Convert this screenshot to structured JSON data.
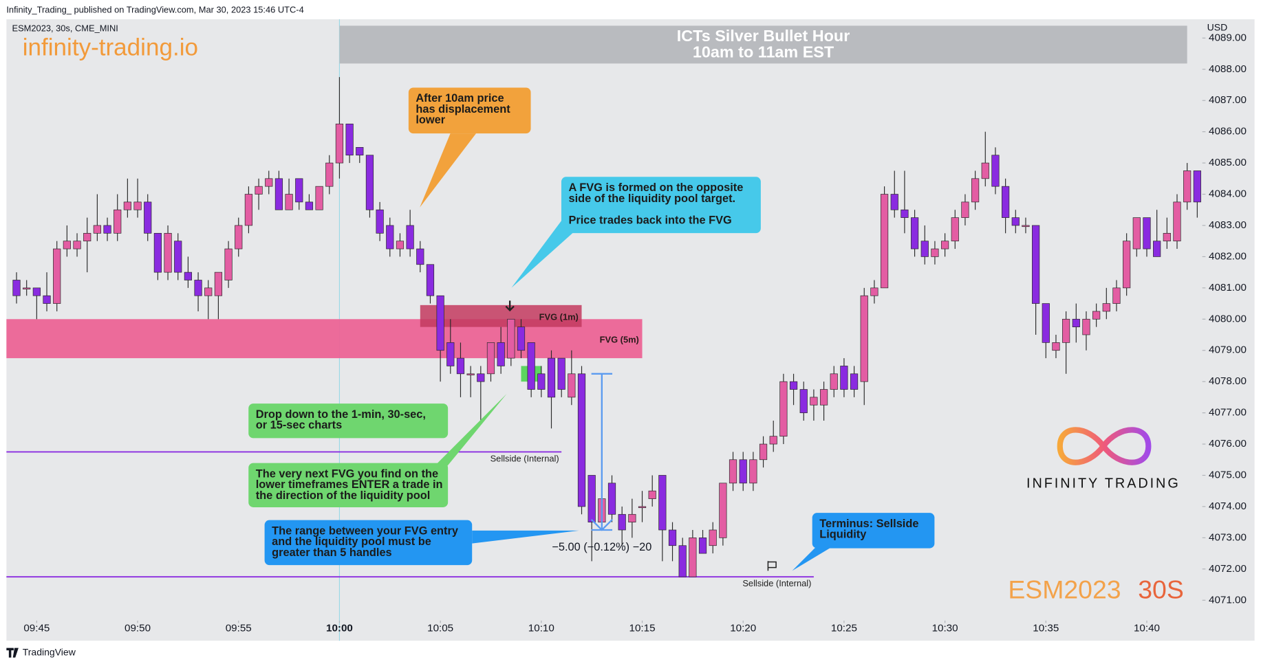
{
  "header": "Infinity_Trading_ published on TradingView.com, Mar 30, 2023 15:46 UTC-4",
  "footer": "TradingView",
  "chart_data": {
    "type": "candlestick",
    "symbol": "ESM2023, 30s, CME_MINI",
    "watermark": "infinity-trading.io",
    "currency": "USD",
    "up_color": "#e35da3",
    "down_color": "#8a2be0",
    "open": [
      4081.25,
      4081,
      4081,
      4080.75,
      4080.5,
      4082.25,
      4082.25,
      4082.5,
      4082.75,
      4083,
      4082.75,
      4083.5,
      4083.5,
      4083.75,
      4082.75,
      4081.5,
      4082.5,
      4081.5,
      4081.25,
      4080.75,
      4080.75,
      4081.25,
      4082.25,
      4083,
      4084,
      4084.25,
      4084.5,
      4083.5,
      4084.5,
      4083.75,
      4083.5,
      4084.25,
      4085,
      4086.25,
      4085.5,
      4085.25,
      4083.5,
      4083,
      4082.25,
      4083,
      4082.25,
      4081.75,
      4080.75,
      4079.25,
      4078.75,
      4078.25,
      4078.25,
      4078.25,
      4079.25,
      4078.75,
      4079.75,
      4079.25,
      4078.25,
      4078.75,
      4078.75,
      4077.5,
      4078.25,
      4075,
      4073.5,
      4074.75,
      4073.75,
      4073.5,
      4074,
      4074.25,
      4075,
      4073.25,
      4072.75,
      4071.75,
      4073,
      4072.75,
      4073,
      4074.75,
      4075.5,
      4074.75,
      4075.5,
      4076,
      4076.25,
      4078,
      4077.75,
      4077.25,
      4077.25,
      4077.75,
      4078.5,
      4078.25,
      4078,
      4080.75,
      4081,
      4084,
      4083.5,
      4083.25,
      4082.5,
      4082,
      4082.25,
      4082.5,
      4083.25,
      4083.75,
      4084.5,
      4085.25,
      4084.25,
      4083.25,
      4083,
      4083,
      4080.5,
      4079,
      4079.25,
      4080,
      4079.5,
      4080,
      4080.25,
      4080.5,
      4081,
      4082.25,
      4083.25,
      4082.5,
      4082.5,
      4082.5,
      4083.75,
      4084.75
    ],
    "high": [
      4081.5,
      4081.25,
      4081,
      4081.5,
      4082.5,
      4083,
      4082.75,
      4083.25,
      4084,
      4083.25,
      4084,
      4084.5,
      4084.5,
      4084,
      4082.75,
      4083,
      4082.75,
      4082,
      4081.5,
      4081.25,
      4081.5,
      4082.5,
      4083.25,
      4084.25,
      4084.5,
      4084.75,
      4084.75,
      4084.5,
      4084.5,
      4084,
      4084.25,
      4085.25,
      4087.75,
      4086.25,
      4085.5,
      4085.25,
      4083.75,
      4083.25,
      4082.75,
      4083.5,
      4082.5,
      4081.75,
      4080.75,
      4080,
      4079.25,
      4078.5,
      4078.5,
      4079.25,
      4079.75,
      4080,
      4080,
      4079.25,
      4078.5,
      4079,
      4078.75,
      4079,
      4078.5,
      4075,
      4074.5,
      4075,
      4074,
      4074.25,
      4074.5,
      4075,
      4075,
      4073.5,
      4073,
      4073.25,
      4073.25,
      4073.5,
      4074.75,
      4075.75,
      4075.75,
      4075.75,
      4076.25,
      4076.75,
      4078.25,
      4078.25,
      4078,
      4077.75,
      4078,
      4078.5,
      4078.75,
      4078.5,
      4081,
      4081.25,
      4084.25,
      4084.75,
      4084.75,
      4083.5,
      4083,
      4082.5,
      4082.75,
      4083.5,
      4084,
      4084.75,
      4086,
      4085.5,
      4084.5,
      4083.5,
      4083.25,
      4083,
      4080.5,
      4079.5,
      4080.25,
      4080.5,
      4080.25,
      4080.5,
      4081,
      4081.25,
      4082.75,
      4083.25,
      4083.25,
      4083.5,
      4083.25,
      4084,
      4085,
      4084.75
    ],
    "low": [
      4080.5,
      4080.75,
      4080,
      4080.25,
      4080.25,
      4082,
      4082,
      4081.5,
      4082.5,
      4082.5,
      4082.5,
      4083.25,
      4083.25,
      4082.5,
      4081.25,
      4081.25,
      4081.25,
      4081,
      4080.25,
      4080,
      4080,
      4081,
      4082,
      4082.75,
      4083.5,
      4084,
      4083.5,
      4083.5,
      4083.5,
      4083.5,
      4083.5,
      4084,
      4084.5,
      4085,
      4085,
      4083.25,
      4082.5,
      4082,
      4082,
      4082,
      4081.5,
      4080.5,
      4078,
      4078.25,
      4077.5,
      4077.5,
      4076.75,
      4078,
      4078.25,
      4078.5,
      4078.75,
      4077.5,
      4077.5,
      4076.5,
      4077.5,
      4077.25,
      4073.75,
      4072.25,
      4073.25,
      4073.5,
      4072.75,
      4073,
      4073.5,
      4074,
      4072.25,
      4072.25,
      4071.75,
      4071.75,
      4072.5,
      4072.5,
      4072.75,
      4074.5,
      4074.5,
      4074.5,
      4075.25,
      4075.75,
      4076,
      4077.25,
      4076.75,
      4076.75,
      4076.75,
      4077.5,
      4077.5,
      4077.5,
      4077.25,
      4080.5,
      4081,
      4083.25,
      4082.75,
      4082,
      4081.75,
      4081.75,
      4082,
      4082.25,
      4083,
      4083.5,
      4084.25,
      4084,
      4082.75,
      4082.75,
      4082.75,
      4079.5,
      4078.75,
      4078.75,
      4078.25,
      4079.25,
      4079,
      4079.75,
      4080,
      4080.25,
      4080.75,
      4082,
      4082,
      4082,
      4082.25,
      4082.25,
      4083.5,
      4083.25
    ],
    "close": [
      4080.75,
      4081,
      4080.75,
      4080.5,
      4082.25,
      4082.5,
      4082.5,
      4082.75,
      4083,
      4082.75,
      4083.5,
      4083.75,
      4083.75,
      4082.75,
      4081.5,
      4082.75,
      4081.5,
      4081.25,
      4080.75,
      4081,
      4081.5,
      4082.25,
      4083,
      4084,
      4084.25,
      4084.5,
      4083.5,
      4084,
      4083.75,
      4083.5,
      4084.25,
      4085,
      4086.25,
      4085.25,
      4085.25,
      4083.5,
      4082.75,
      4082.25,
      4082.5,
      4082.25,
      4081.75,
      4080.75,
      4079,
      4078.5,
      4078.25,
      4078.25,
      4078,
      4079.25,
      4078.5,
      4080,
      4079,
      4077.75,
      4077.75,
      4077.5,
      4077.75,
      4078.25,
      4074,
      4073.5,
      4074.25,
      4073.75,
      4073.25,
      4073.75,
      4074,
      4074.5,
      4073.25,
      4072.75,
      4071.75,
      4073,
      4072.5,
      4073.25,
      4074.75,
      4075.5,
      4074.75,
      4075.5,
      4076,
      4076.25,
      4078,
      4077.75,
      4077,
      4077.5,
      4077.75,
      4078.25,
      4077.75,
      4077.75,
      4080.75,
      4081,
      4084,
      4083.5,
      4083.25,
      4082.25,
      4082,
      4082.25,
      4082.5,
      4083.25,
      4083.75,
      4084.5,
      4085,
      4084.25,
      4083.25,
      4083,
      4083,
      4080.5,
      4079.25,
      4079.25,
      4080,
      4079.75,
      4080,
      4080.25,
      4080.5,
      4081,
      4082.5,
      4083.25,
      4082.25,
      4082,
      4082.75,
      4083.75,
      4084.75,
      4083.75
    ],
    "xlim": [
      -1,
      117.5
    ],
    "xticks": [
      {
        "value": 2,
        "label": "09:45"
      },
      {
        "value": 12,
        "label": "09:50"
      },
      {
        "value": 22,
        "label": "09:55"
      },
      {
        "value": 32,
        "label": "10:00"
      },
      {
        "value": 42,
        "label": "10:05"
      },
      {
        "value": 52,
        "label": "10:10"
      },
      {
        "value": 62,
        "label": "10:15"
      },
      {
        "value": 72,
        "label": "10:20"
      },
      {
        "value": 82,
        "label": "10:25"
      },
      {
        "value": 92,
        "label": "10:30"
      },
      {
        "value": 102,
        "label": "10:35"
      },
      {
        "value": 112,
        "label": "10:40"
      }
    ],
    "ylim": [
      4070.4,
      4089.6
    ],
    "yticks": [
      {
        "value": 4071,
        "label": "4071.00"
      },
      {
        "value": 4072,
        "label": "4072.00"
      },
      {
        "value": 4073,
        "label": "4073.00"
      },
      {
        "value": 4074,
        "label": "4074.00"
      },
      {
        "value": 4075,
        "label": "4075.00"
      },
      {
        "value": 4076,
        "label": "4076.00"
      },
      {
        "value": 4077,
        "label": "4077.00"
      },
      {
        "value": 4078,
        "label": "4078.00"
      },
      {
        "value": 4079,
        "label": "4079.00"
      },
      {
        "value": 4080,
        "label": "4080.00"
      },
      {
        "value": 4081,
        "label": "4081.00"
      },
      {
        "value": 4082,
        "label": "4082.00"
      },
      {
        "value": 4083,
        "label": "4083.00"
      },
      {
        "value": 4084,
        "label": "4084.00"
      },
      {
        "value": 4085,
        "label": "4085.00"
      },
      {
        "value": 4086,
        "label": "4086.00"
      },
      {
        "value": 4087,
        "label": "4087.00"
      },
      {
        "value": 4088,
        "label": "4088.00"
      },
      {
        "value": 4089,
        "label": "4089.00"
      }
    ],
    "vlines": [
      {
        "x": 32,
        "color": "#9ad8e6"
      }
    ],
    "zones": [
      {
        "label": "FVG (5m)",
        "from": -1,
        "to": 62,
        "low": 4078.75,
        "high": 4080,
        "color": "#ec6496"
      },
      {
        "label": "FVG (1m)",
        "from": 40,
        "to": 56,
        "low": 4079.75,
        "high": 4080.45,
        "color": "#c3395f"
      },
      {
        "from": 50,
        "to": 52,
        "low": 4078,
        "high": 4078.5,
        "color": "#55d45a"
      }
    ],
    "levels": [
      {
        "y": 4075.75,
        "from": -1,
        "to": 54,
        "label": "Sellside (Internal)",
        "color": "#8a2be0"
      },
      {
        "y": 4071.75,
        "from": -1,
        "to": 79,
        "label": "Sellside (Internal)",
        "color": "#8a2be0"
      }
    ],
    "measure": {
      "x": 58,
      "from": 4078.25,
      "to": 4073.25,
      "label": "−5.00 (−0.12%) −20",
      "color": "#5b9bf0"
    },
    "banner": [
      "ICTs Silver Bullet Hour",
      "10am to 11am EST"
    ],
    "callouts": [
      {
        "color": "#f2a23c",
        "lines": [
          "After 10am price",
          "has displacement",
          "lower"
        ]
      },
      {
        "color": "#46c9ea",
        "lines": [
          "A FVG is formed on the opposite",
          "side of the liquidity pool target.",
          "Price trades back into the FVG"
        ]
      },
      {
        "color": "#6fd66f",
        "lines": [
          "Drop down to the 1-min, 30-sec,",
          "or 15-sec charts"
        ]
      },
      {
        "color": "#6fd66f",
        "lines": [
          "The very next FVG you find on the",
          "lower timeframes ENTER a trade in",
          "the direction of the liquidity pool"
        ]
      },
      {
        "color": "#2396f2",
        "lines": [
          "The range between your FVG entry",
          "and the liquidity pool must be",
          "greater than 5 handles"
        ]
      },
      {
        "color": "#2396f2",
        "lines": [
          "Terminus: Sellside",
          "Liquidity"
        ]
      }
    ],
    "brand": "INFINITY TRADING",
    "badge": [
      "ESM2023",
      "30S"
    ]
  }
}
